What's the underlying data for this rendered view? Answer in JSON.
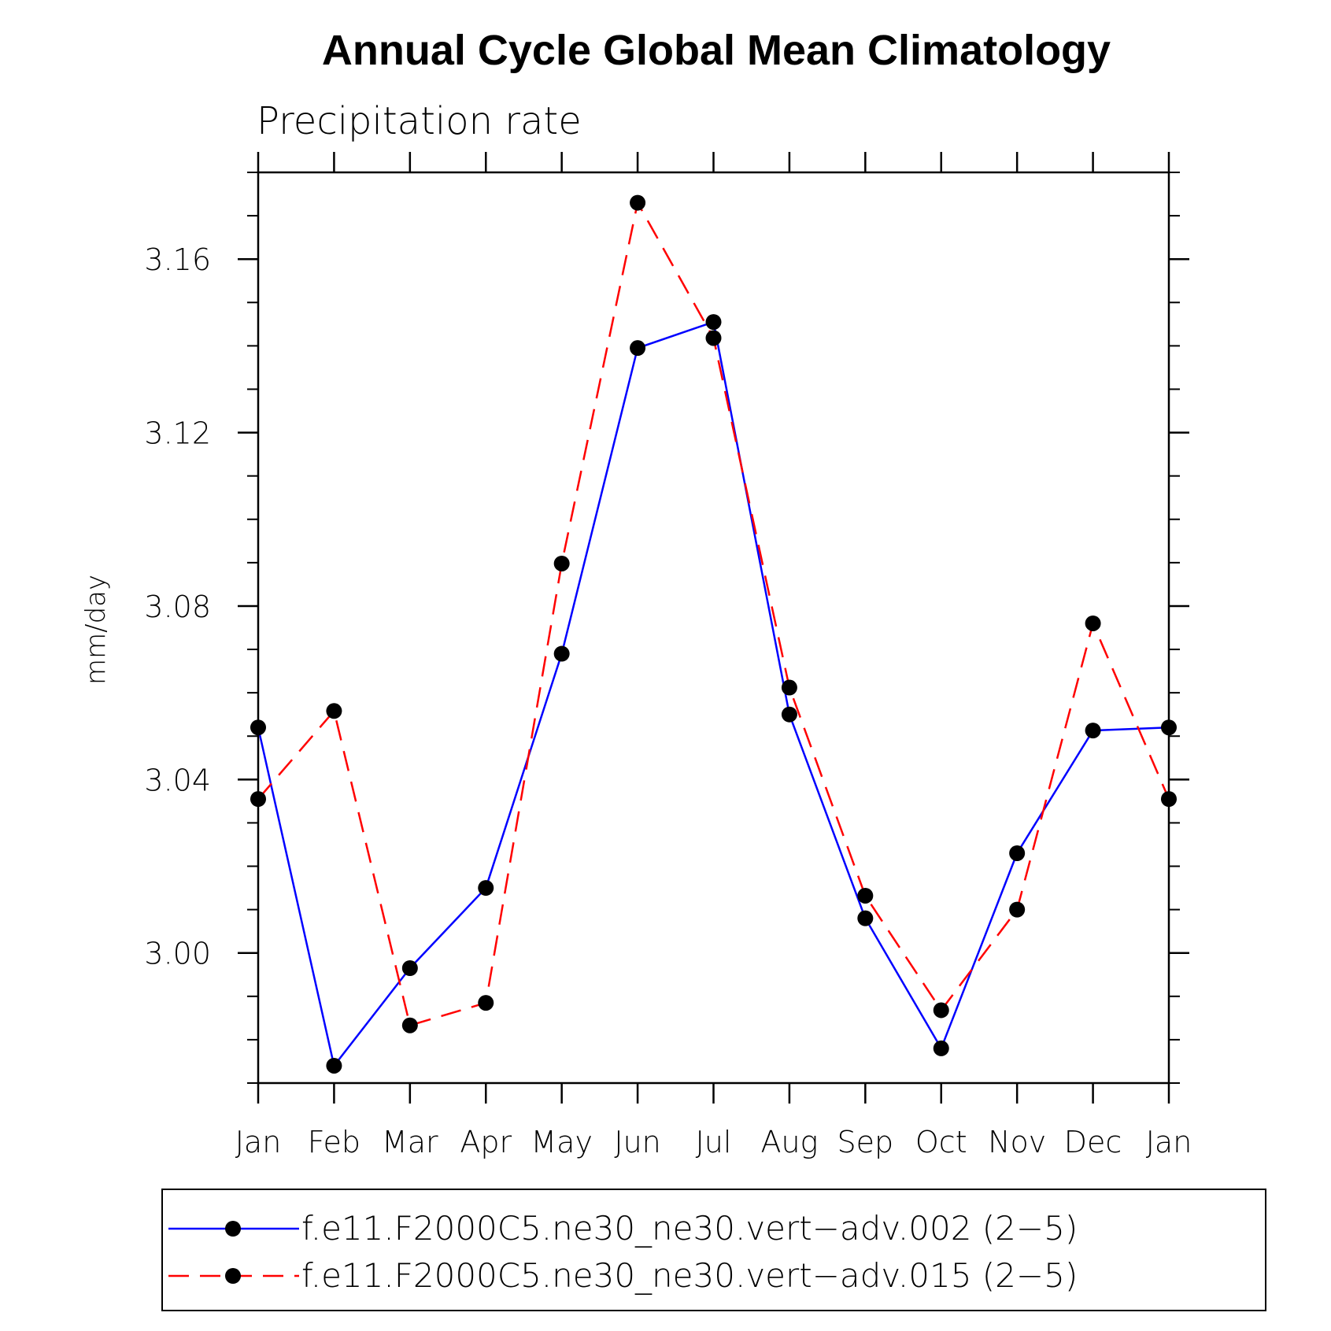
{
  "chart_data": {
    "type": "line",
    "title": "Annual Cycle Global Mean Climatology",
    "subtitle": "Precipitation rate",
    "xlabel": "",
    "ylabel": "mm/day",
    "categories": [
      "Jan",
      "Feb",
      "Mar",
      "Apr",
      "May",
      "Jun",
      "Jul",
      "Aug",
      "Sep",
      "Oct",
      "Nov",
      "Dec",
      "Jan"
    ],
    "ylim": [
      2.97,
      3.18
    ],
    "yticks": [
      3.0,
      3.04,
      3.08,
      3.12,
      3.16
    ],
    "ytick_labels": [
      "3.00",
      "3.04",
      "3.08",
      "3.12",
      "3.16"
    ],
    "grid": false,
    "legend_position": "bottom",
    "series": [
      {
        "name": "f.e11.F2000C5.ne30_ne30.vert−adv.002 (2−5)",
        "color": "#0000ff",
        "style": "solid",
        "marker": "filled-circle",
        "values": [
          3.052,
          2.974,
          2.9965,
          3.015,
          3.069,
          3.1395,
          3.1455,
          3.055,
          3.008,
          2.978,
          3.023,
          3.0513,
          3.052
        ]
      },
      {
        "name": "f.e11.F2000C5.ne30_ne30.vert−adv.015 (2−5)",
        "color": "#ff0000",
        "style": "dashed",
        "marker": "filled-circle",
        "values": [
          3.0355,
          3.0558,
          2.9833,
          2.9885,
          3.0898,
          3.173,
          3.1418,
          3.0612,
          3.0132,
          2.9868,
          3.01,
          3.076,
          3.0355
        ]
      }
    ]
  }
}
